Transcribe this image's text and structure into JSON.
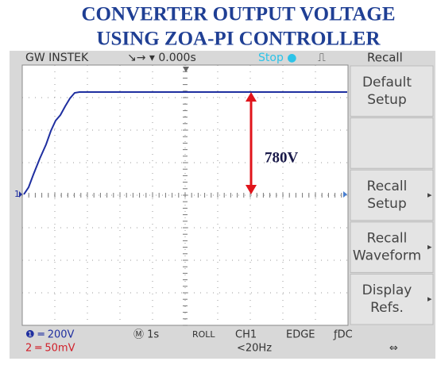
{
  "header": {
    "title": [
      "CONVERTER OUTPUT VOLTAGE",
      "USING ZOA-PI CONTROLLER"
    ]
  },
  "top_bar": {
    "brand": "GW INSTEK",
    "timebase": "↘→ ▾ 0.000s",
    "status": "Stop ●",
    "trigger_icon": "⎍",
    "menu_title": "Recall"
  },
  "menu": [
    {
      "lines": [
        "Default",
        "Setup"
      ]
    },
    {
      "lines": []
    },
    {
      "lines": [
        "Recall",
        "Setup"
      ],
      "arrow": "▸"
    },
    {
      "lines": [
        "Recall",
        "Waveform"
      ],
      "arrow": "▸"
    },
    {
      "lines": [
        "Display",
        "Refs."
      ],
      "arrow": "▸"
    }
  ],
  "screen": {
    "channel_marker": "1",
    "annotation": "780V"
  },
  "bottom_bar": {
    "ch1_scale": "❶ ═ 200V",
    "ch2_scale": "2 ═ 50mV",
    "time_scale": "Ⓜ 1s",
    "mode": "ROLL",
    "source": "CH1",
    "trigger_type": "EDGE",
    "coupling": "ƒDC",
    "frequency": "<20Hz",
    "usb": "⇔"
  }
}
